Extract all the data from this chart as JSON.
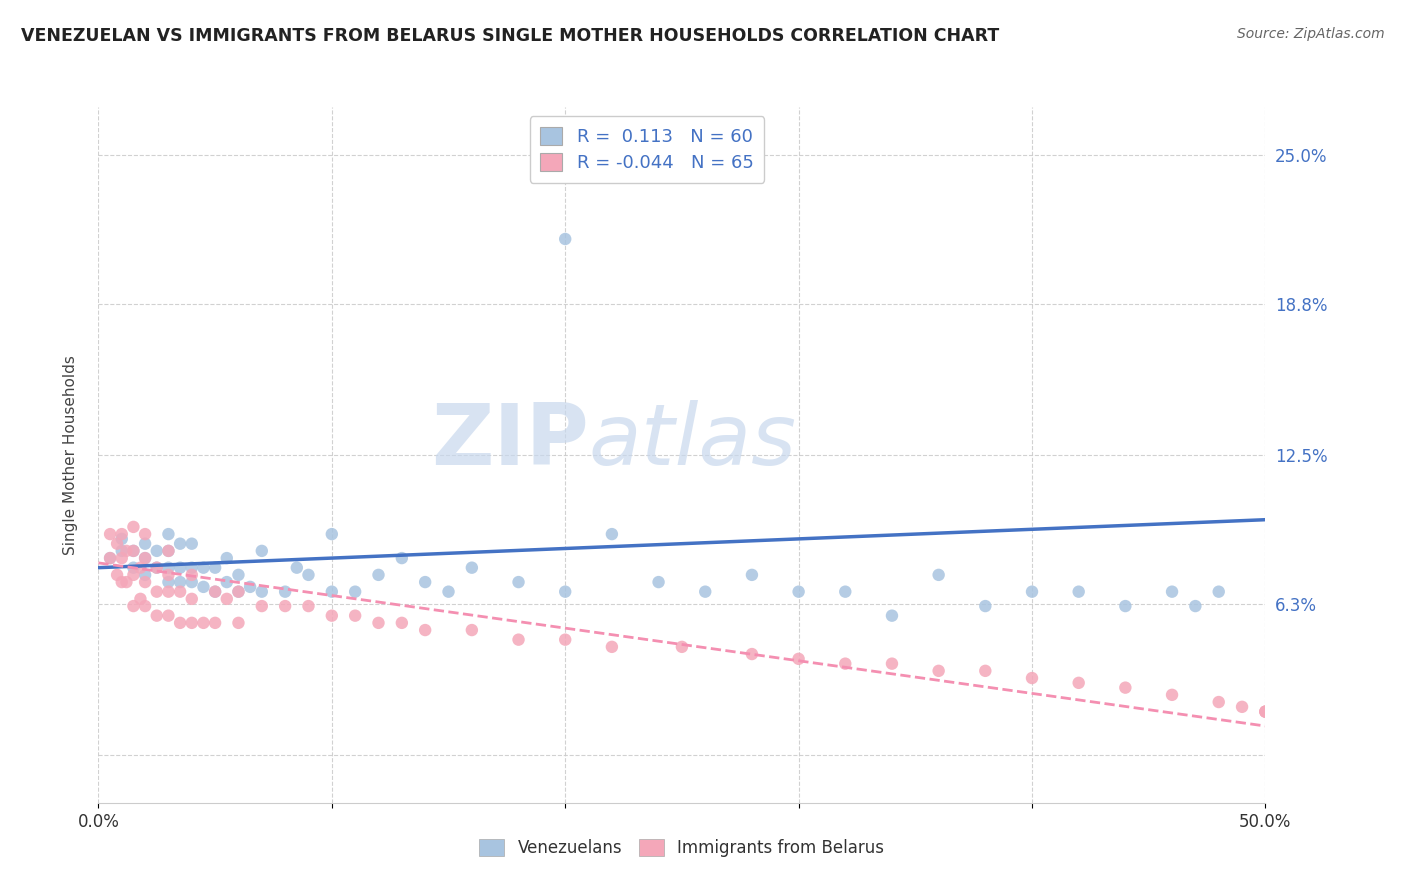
{
  "title": "VENEZUELAN VS IMMIGRANTS FROM BELARUS SINGLE MOTHER HOUSEHOLDS CORRELATION CHART",
  "source": "Source: ZipAtlas.com",
  "ylabel": "Single Mother Households",
  "xlim": [
    0.0,
    0.5
  ],
  "ylim": [
    -0.02,
    0.27
  ],
  "legend1_r": "0.113",
  "legend1_n": "60",
  "legend2_r": "-0.044",
  "legend2_n": "65",
  "venezuelan_color": "#a8c4e0",
  "belarus_color": "#f4a7b9",
  "venezuelan_line_color": "#4472c4",
  "belarus_line_color": "#f48fb1",
  "watermark_zip": "ZIP",
  "watermark_atlas": "atlas",
  "background_color": "#ffffff",
  "grid_color": "#cccccc",
  "ytick_color": "#4472c4",
  "venezuelan_x": [
    0.005,
    0.01,
    0.01,
    0.015,
    0.015,
    0.02,
    0.02,
    0.02,
    0.025,
    0.025,
    0.03,
    0.03,
    0.03,
    0.03,
    0.035,
    0.035,
    0.035,
    0.04,
    0.04,
    0.04,
    0.045,
    0.045,
    0.05,
    0.05,
    0.055,
    0.055,
    0.06,
    0.06,
    0.065,
    0.07,
    0.07,
    0.08,
    0.085,
    0.09,
    0.1,
    0.1,
    0.11,
    0.12,
    0.13,
    0.14,
    0.15,
    0.16,
    0.18,
    0.2,
    0.22,
    0.24,
    0.26,
    0.28,
    0.3,
    0.32,
    0.34,
    0.36,
    0.38,
    0.4,
    0.42,
    0.44,
    0.46,
    0.47,
    0.48,
    0.2
  ],
  "venezuelan_y": [
    0.082,
    0.085,
    0.09,
    0.078,
    0.085,
    0.075,
    0.082,
    0.088,
    0.078,
    0.085,
    0.072,
    0.078,
    0.085,
    0.092,
    0.072,
    0.078,
    0.088,
    0.072,
    0.078,
    0.088,
    0.07,
    0.078,
    0.068,
    0.078,
    0.072,
    0.082,
    0.068,
    0.075,
    0.07,
    0.068,
    0.085,
    0.068,
    0.078,
    0.075,
    0.068,
    0.092,
    0.068,
    0.075,
    0.082,
    0.072,
    0.068,
    0.078,
    0.072,
    0.068,
    0.092,
    0.072,
    0.068,
    0.075,
    0.068,
    0.068,
    0.058,
    0.075,
    0.062,
    0.068,
    0.068,
    0.062,
    0.068,
    0.062,
    0.068,
    0.215
  ],
  "belarus_x": [
    0.005,
    0.005,
    0.008,
    0.008,
    0.01,
    0.01,
    0.01,
    0.012,
    0.012,
    0.015,
    0.015,
    0.015,
    0.015,
    0.018,
    0.018,
    0.02,
    0.02,
    0.02,
    0.02,
    0.025,
    0.025,
    0.025,
    0.03,
    0.03,
    0.03,
    0.03,
    0.035,
    0.035,
    0.04,
    0.04,
    0.04,
    0.045,
    0.05,
    0.05,
    0.055,
    0.06,
    0.06,
    0.07,
    0.08,
    0.09,
    0.1,
    0.11,
    0.12,
    0.13,
    0.14,
    0.16,
    0.18,
    0.2,
    0.22,
    0.25,
    0.28,
    0.3,
    0.32,
    0.34,
    0.36,
    0.38,
    0.4,
    0.42,
    0.44,
    0.46,
    0.48,
    0.49,
    0.5,
    0.5,
    0.5
  ],
  "belarus_y": [
    0.082,
    0.092,
    0.075,
    0.088,
    0.072,
    0.082,
    0.092,
    0.072,
    0.085,
    0.062,
    0.075,
    0.085,
    0.095,
    0.065,
    0.078,
    0.062,
    0.072,
    0.082,
    0.092,
    0.058,
    0.068,
    0.078,
    0.058,
    0.068,
    0.075,
    0.085,
    0.055,
    0.068,
    0.055,
    0.065,
    0.075,
    0.055,
    0.055,
    0.068,
    0.065,
    0.055,
    0.068,
    0.062,
    0.062,
    0.062,
    0.058,
    0.058,
    0.055,
    0.055,
    0.052,
    0.052,
    0.048,
    0.048,
    0.045,
    0.045,
    0.042,
    0.04,
    0.038,
    0.038,
    0.035,
    0.035,
    0.032,
    0.03,
    0.028,
    0.025,
    0.022,
    0.02,
    0.018,
    0.018,
    0.018
  ],
  "ven_line_x0": 0.0,
  "ven_line_x1": 0.5,
  "ven_line_y0": 0.078,
  "ven_line_y1": 0.098,
  "bel_line_x0": 0.0,
  "bel_line_x1": 0.5,
  "bel_line_y0": 0.08,
  "bel_line_y1": 0.012
}
